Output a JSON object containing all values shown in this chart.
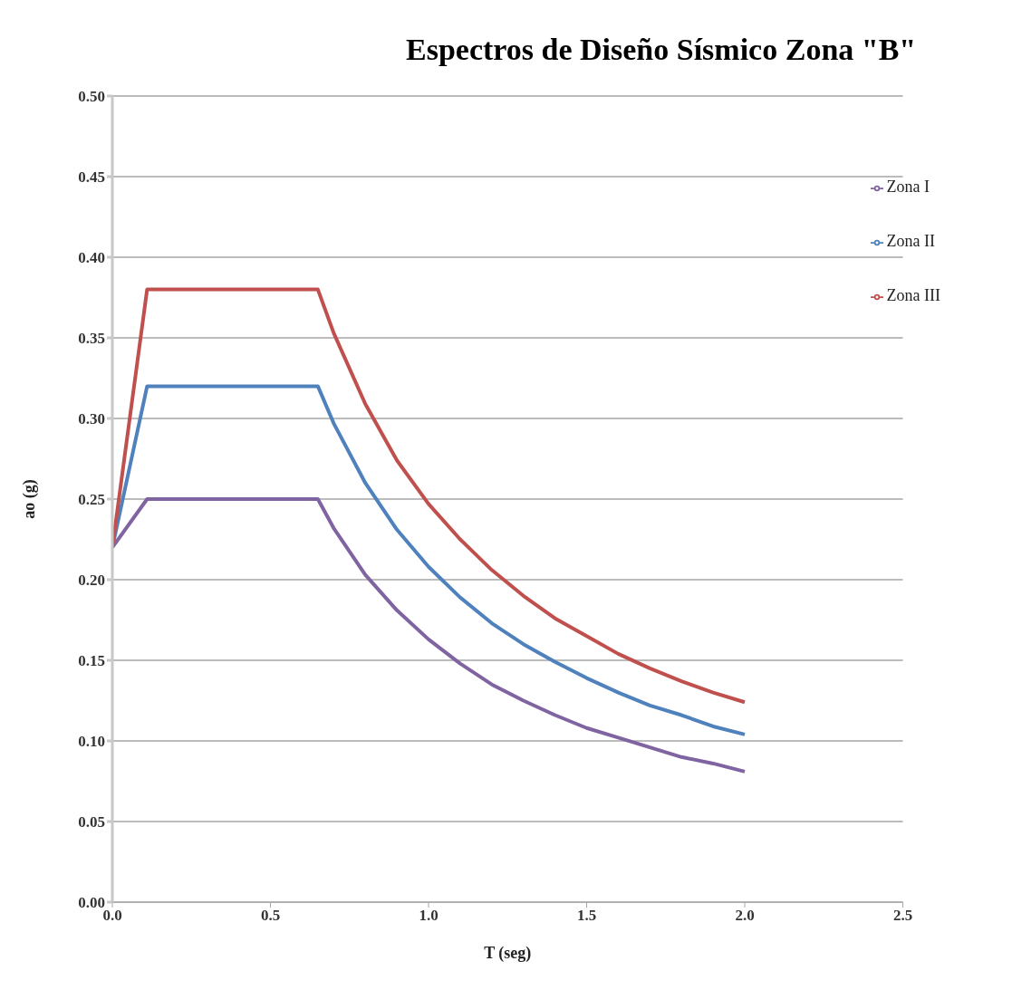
{
  "chart_data": {
    "type": "line",
    "title": "Espectros de Diseño Sísmico Zona \"B\"",
    "xlabel": "T (seg)",
    "ylabel": "ao (g)",
    "x": [
      0,
      0.11,
      0.65,
      0.7,
      0.8,
      0.9,
      1.0,
      1.1,
      1.2,
      1.3,
      1.4,
      1.5,
      1.6,
      1.7,
      1.8,
      1.9,
      2.0
    ],
    "series": [
      {
        "name": "Zona I",
        "color": "#8064a2",
        "values": [
          0.22,
          0.25,
          0.25,
          0.232,
          0.203,
          0.181,
          0.163,
          0.148,
          0.135,
          0.125,
          0.116,
          0.108,
          0.102,
          0.096,
          0.09,
          0.086,
          0.081
        ]
      },
      {
        "name": "Zona II",
        "color": "#4f81bd",
        "values": [
          0.22,
          0.32,
          0.32,
          0.297,
          0.26,
          0.231,
          0.208,
          0.189,
          0.173,
          0.16,
          0.149,
          0.139,
          0.13,
          0.122,
          0.116,
          0.109,
          0.104
        ]
      },
      {
        "name": "Zona III",
        "color": "#c0504d",
        "values": [
          0.22,
          0.38,
          0.38,
          0.353,
          0.309,
          0.274,
          0.247,
          0.225,
          0.206,
          0.19,
          0.176,
          0.165,
          0.154,
          0.145,
          0.137,
          0.13,
          0.124
        ]
      }
    ],
    "xlim": [
      0,
      2.5
    ],
    "xticks": [
      {
        "value": 0,
        "label": "0.0"
      },
      {
        "value": 0.5,
        "label": "0.5"
      },
      {
        "value": 1,
        "label": "1.0"
      },
      {
        "value": 1.5,
        "label": "1.5"
      },
      {
        "value": 2,
        "label": "2.0"
      },
      {
        "value": 2.5,
        "label": "2.5"
      }
    ],
    "ylim": [
      0,
      0.5
    ],
    "yticks": [
      {
        "value": 0,
        "label": "0.00"
      },
      {
        "value": 0.05,
        "label": "0.05"
      },
      {
        "value": 0.1,
        "label": "0.10"
      },
      {
        "value": 0.15,
        "label": "0.15"
      },
      {
        "value": 0.2,
        "label": "0.20"
      },
      {
        "value": 0.25,
        "label": "0.25"
      },
      {
        "value": 0.3,
        "label": "0.30"
      },
      {
        "value": 0.35,
        "label": "0.35"
      },
      {
        "value": 0.4,
        "label": "0.40"
      },
      {
        "value": 0.45,
        "label": "0.45"
      },
      {
        "value": 0.5,
        "label": "0.50"
      }
    ],
    "grid": "y",
    "legend": "top right",
    "marker": "none",
    "line_style": "solid"
  }
}
